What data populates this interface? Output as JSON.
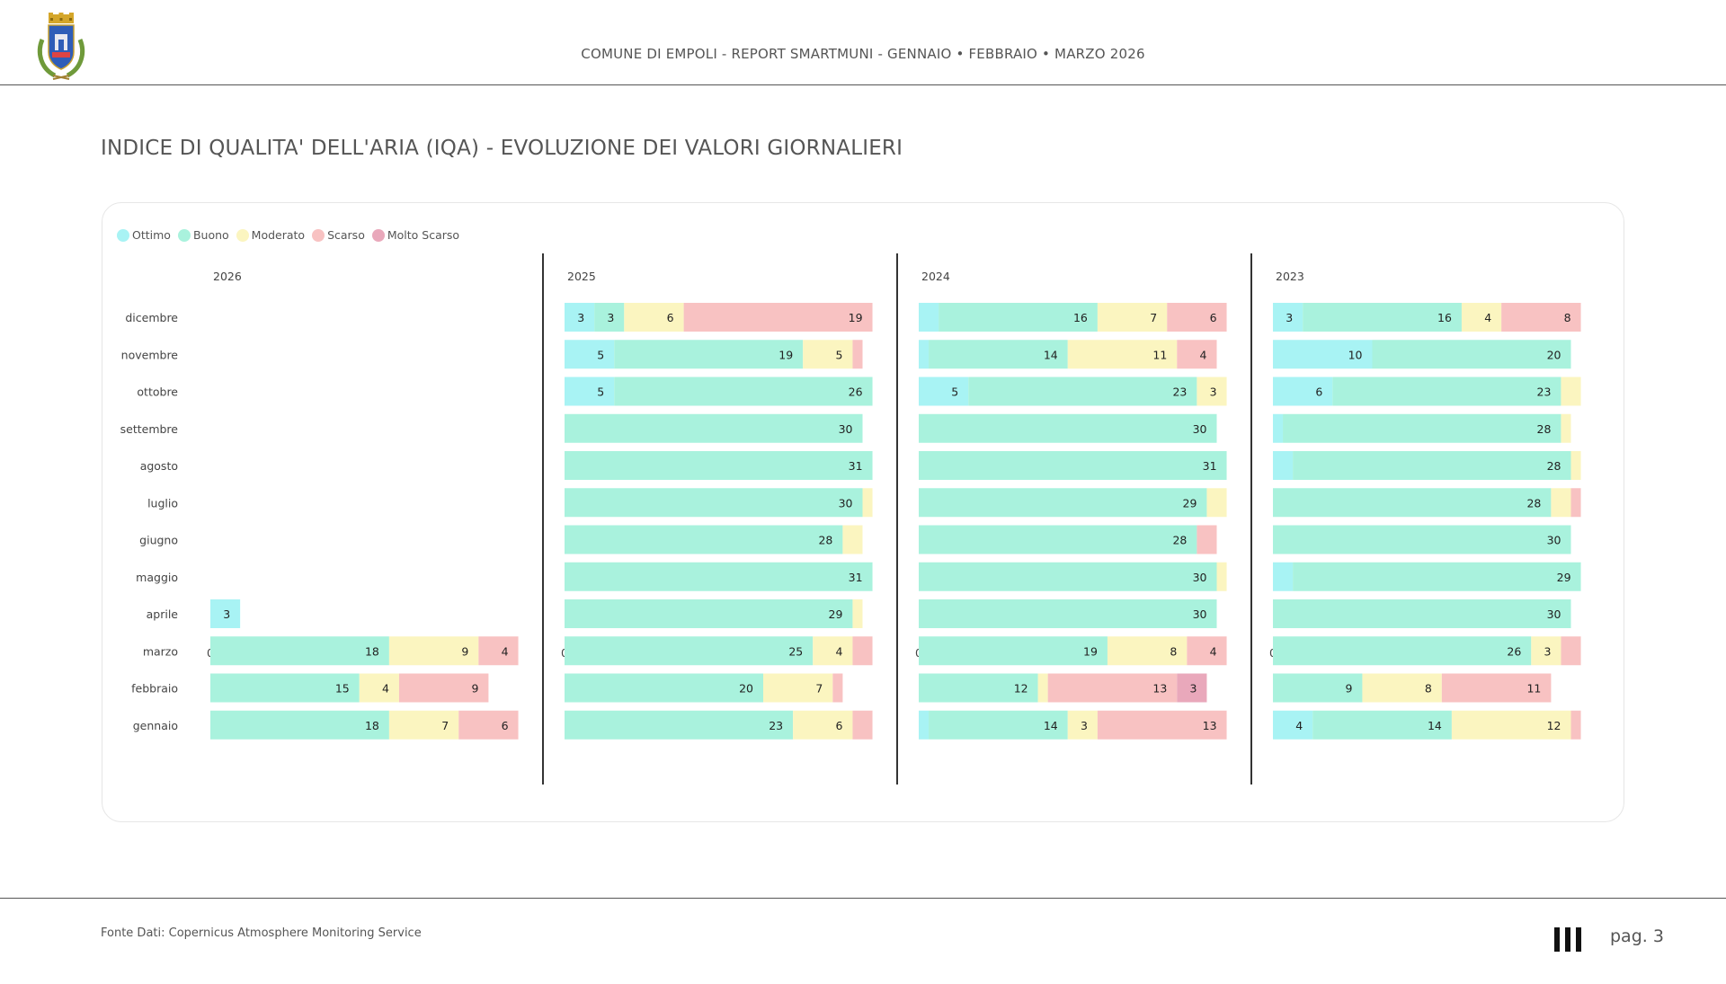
{
  "header": {
    "title": "COMUNE DI EMPOLI - REPORT SMARTMUNI - GENNAIO • FEBBRAIO • MARZO 2026"
  },
  "page_title": "INDICE DI QUALITA' DELL'ARIA (IQA) - EVOLUZIONE DEI VALORI GIORNALIERI",
  "footer": {
    "source": "Fonte Dati: Copernicus Atmosphere Monitoring Service",
    "page": "pag. 3"
  },
  "colors": {
    "Ottimo": "#a8f3f4",
    "Buono": "#a9f2dd",
    "Moderato": "#fbf5c0",
    "Scarso": "#f8c2c2",
    "Molto Scarso": "#e9a8bb"
  },
  "chart_data": {
    "type": "bar",
    "orientation": "horizontal",
    "stacked": true,
    "categories": [
      "dicembre",
      "novembre",
      "ottobre",
      "settembre",
      "agosto",
      "luglio",
      "giugno",
      "maggio",
      "aprile",
      "marzo",
      "febbraio",
      "gennaio"
    ],
    "series_names": [
      "Ottimo",
      "Buono",
      "Moderato",
      "Scarso",
      "Molto Scarso"
    ],
    "xticks": [
      0,
      20
    ],
    "xlim": [
      0,
      31
    ],
    "legend": "top-left",
    "panels": [
      {
        "title": "2026",
        "values": [
          [
            0,
            0,
            0,
            0,
            0
          ],
          [
            0,
            0,
            0,
            0,
            0
          ],
          [
            0,
            0,
            0,
            0,
            0
          ],
          [
            0,
            0,
            0,
            0,
            0
          ],
          [
            0,
            0,
            0,
            0,
            0
          ],
          [
            0,
            0,
            0,
            0,
            0
          ],
          [
            0,
            0,
            0,
            0,
            0
          ],
          [
            0,
            0,
            0,
            0,
            0
          ],
          [
            3,
            0,
            0,
            0,
            0
          ],
          [
            0,
            18,
            9,
            4,
            0
          ],
          [
            0,
            15,
            4,
            9,
            0
          ],
          [
            0,
            18,
            7,
            6,
            0
          ]
        ]
      },
      {
        "title": "2025",
        "values": [
          [
            3,
            3,
            6,
            19,
            0
          ],
          [
            5,
            19,
            5,
            1,
            0
          ],
          [
            5,
            26,
            0,
            0,
            0
          ],
          [
            0,
            30,
            0,
            0,
            0
          ],
          [
            0,
            31,
            0,
            0,
            0
          ],
          [
            0,
            30,
            1,
            0,
            0
          ],
          [
            0,
            28,
            2,
            0,
            0
          ],
          [
            0,
            31,
            0,
            0,
            0
          ],
          [
            0,
            29,
            1,
            0,
            0
          ],
          [
            0,
            25,
            4,
            2,
            0
          ],
          [
            0,
            20,
            7,
            1,
            0
          ],
          [
            0,
            23,
            6,
            2,
            0
          ]
        ]
      },
      {
        "title": "2024",
        "values": [
          [
            2,
            16,
            7,
            6,
            0
          ],
          [
            1,
            14,
            11,
            4,
            0
          ],
          [
            5,
            23,
            3,
            0,
            0
          ],
          [
            0,
            30,
            0,
            0,
            0
          ],
          [
            0,
            31,
            0,
            0,
            0
          ],
          [
            0,
            29,
            2,
            0,
            0
          ],
          [
            0,
            28,
            0,
            2,
            0
          ],
          [
            0,
            30,
            1,
            0,
            0
          ],
          [
            0,
            30,
            0,
            0,
            0
          ],
          [
            0,
            19,
            8,
            4,
            0
          ],
          [
            0,
            12,
            1,
            13,
            3
          ],
          [
            1,
            14,
            3,
            13,
            0
          ]
        ]
      },
      {
        "title": "2023",
        "values": [
          [
            3,
            16,
            4,
            8,
            0
          ],
          [
            10,
            20,
            0,
            0,
            0
          ],
          [
            6,
            23,
            2,
            0,
            0
          ],
          [
            1,
            28,
            1,
            0,
            0
          ],
          [
            2,
            28,
            1,
            0,
            0
          ],
          [
            0,
            28,
            2,
            1,
            0
          ],
          [
            0,
            30,
            0,
            0,
            0
          ],
          [
            2,
            29,
            0,
            0,
            0
          ],
          [
            0,
            30,
            0,
            0,
            0
          ],
          [
            0,
            26,
            3,
            2,
            0
          ],
          [
            0,
            9,
            8,
            11,
            0
          ],
          [
            4,
            14,
            12,
            1,
            0
          ]
        ]
      }
    ]
  }
}
